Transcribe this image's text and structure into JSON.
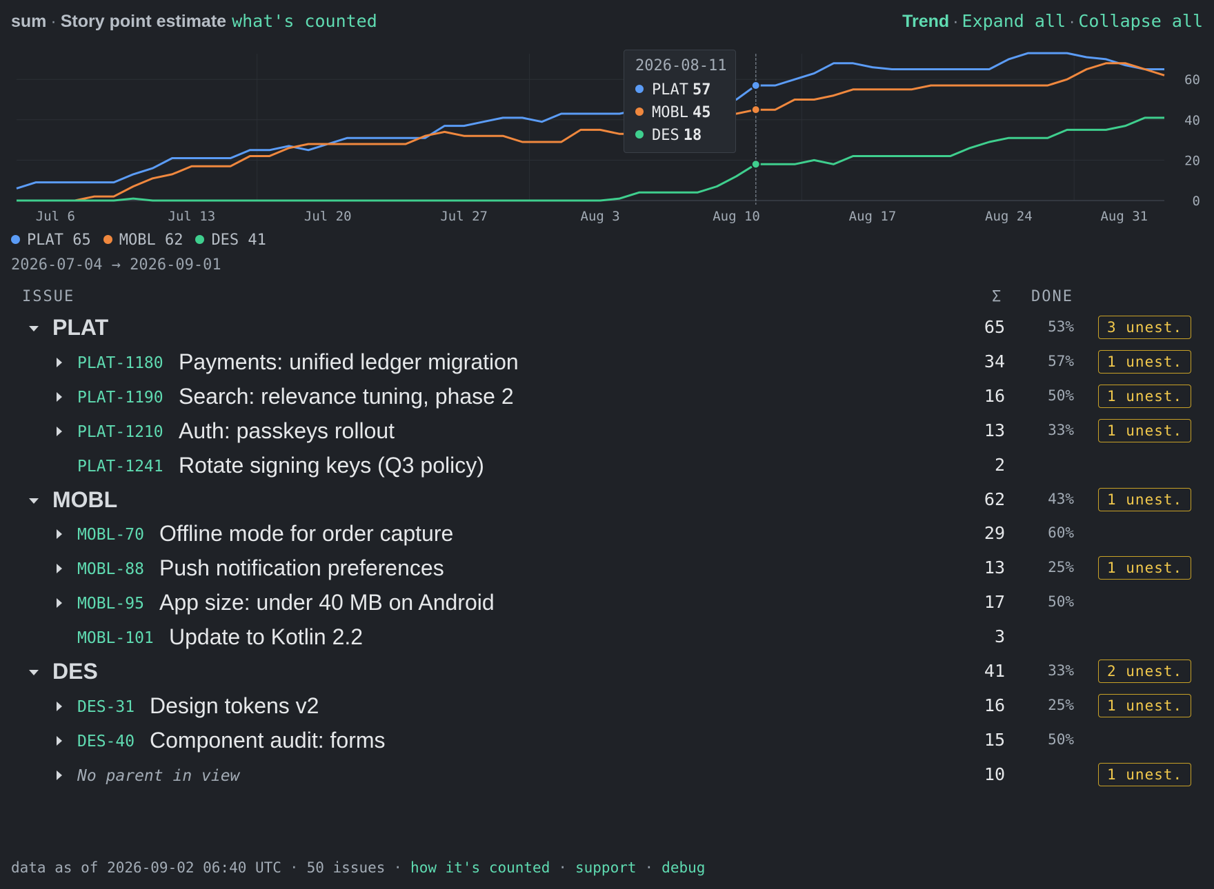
{
  "header": {
    "agg": "sum",
    "metric": "Story point estimate",
    "whats_counted": "what's counted",
    "trend": "Trend",
    "expand_all": "Expand all",
    "collapse_all": "Collapse all"
  },
  "chart_data": {
    "type": "line",
    "x_tick_labels": [
      "Jul 6",
      "Jul 13",
      "Jul 20",
      "Jul 27",
      "Aug 3",
      "Aug 10",
      "Aug 17",
      "Aug 24",
      "Aug 31"
    ],
    "x_range": [
      "2026-07-04",
      "2026-09-01"
    ],
    "y_ticks": [
      0,
      20,
      40,
      60
    ],
    "ylim": [
      0,
      72
    ],
    "y_axis_side": "right",
    "grid": true,
    "series": [
      {
        "name": "PLAT",
        "color": "#5b9cf6",
        "points": [
          [
            0,
            6
          ],
          [
            1,
            9
          ],
          [
            2,
            9
          ],
          [
            3,
            9
          ],
          [
            4,
            9
          ],
          [
            5,
            9
          ],
          [
            6,
            13
          ],
          [
            7,
            16
          ],
          [
            8,
            21
          ],
          [
            9,
            21
          ],
          [
            10,
            21
          ],
          [
            11,
            21
          ],
          [
            12,
            25
          ],
          [
            13,
            25
          ],
          [
            14,
            27
          ],
          [
            15,
            25
          ],
          [
            16,
            28
          ],
          [
            17,
            31
          ],
          [
            18,
            31
          ],
          [
            19,
            31
          ],
          [
            20,
            31
          ],
          [
            21,
            31
          ],
          [
            22,
            37
          ],
          [
            23,
            37
          ],
          [
            24,
            39
          ],
          [
            25,
            41
          ],
          [
            26,
            41
          ],
          [
            27,
            39
          ],
          [
            28,
            43
          ],
          [
            29,
            43
          ],
          [
            30,
            43
          ],
          [
            31,
            43
          ],
          [
            32,
            45
          ],
          [
            33,
            45
          ],
          [
            34,
            46
          ],
          [
            35,
            47
          ],
          [
            36,
            49
          ],
          [
            37,
            50
          ],
          [
            38,
            57
          ],
          [
            39,
            57
          ],
          [
            40,
            60
          ],
          [
            41,
            63
          ],
          [
            42,
            68
          ],
          [
            43,
            68
          ],
          [
            44,
            66
          ],
          [
            45,
            65
          ],
          [
            46,
            65
          ],
          [
            47,
            65
          ],
          [
            48,
            65
          ],
          [
            49,
            65
          ],
          [
            50,
            65
          ],
          [
            51,
            70
          ],
          [
            52,
            73
          ],
          [
            53,
            73
          ],
          [
            54,
            73
          ],
          [
            55,
            71
          ],
          [
            56,
            70
          ],
          [
            57,
            67
          ],
          [
            58,
            65
          ],
          [
            59,
            65
          ]
        ]
      },
      {
        "name": "MOBL",
        "color": "#f0883e",
        "points": [
          [
            0,
            0
          ],
          [
            1,
            0
          ],
          [
            2,
            0
          ],
          [
            3,
            0
          ],
          [
            4,
            2
          ],
          [
            5,
            2
          ],
          [
            6,
            7
          ],
          [
            7,
            11
          ],
          [
            8,
            13
          ],
          [
            9,
            17
          ],
          [
            10,
            17
          ],
          [
            11,
            17
          ],
          [
            12,
            22
          ],
          [
            13,
            22
          ],
          [
            14,
            26
          ],
          [
            15,
            28
          ],
          [
            16,
            28
          ],
          [
            17,
            28
          ],
          [
            18,
            28
          ],
          [
            19,
            28
          ],
          [
            20,
            28
          ],
          [
            21,
            32
          ],
          [
            22,
            34
          ],
          [
            23,
            32
          ],
          [
            24,
            32
          ],
          [
            25,
            32
          ],
          [
            26,
            29
          ],
          [
            27,
            29
          ],
          [
            28,
            29
          ],
          [
            29,
            35
          ],
          [
            30,
            35
          ],
          [
            31,
            33
          ],
          [
            32,
            33
          ],
          [
            33,
            40
          ],
          [
            34,
            42
          ],
          [
            35,
            42
          ],
          [
            36,
            43
          ],
          [
            37,
            43
          ],
          [
            38,
            45
          ],
          [
            39,
            45
          ],
          [
            40,
            50
          ],
          [
            41,
            50
          ],
          [
            42,
            52
          ],
          [
            43,
            55
          ],
          [
            44,
            55
          ],
          [
            45,
            55
          ],
          [
            46,
            55
          ],
          [
            47,
            57
          ],
          [
            48,
            57
          ],
          [
            49,
            57
          ],
          [
            50,
            57
          ],
          [
            51,
            57
          ],
          [
            52,
            57
          ],
          [
            53,
            57
          ],
          [
            54,
            60
          ],
          [
            55,
            65
          ],
          [
            56,
            68
          ],
          [
            57,
            68
          ],
          [
            58,
            65
          ],
          [
            59,
            62
          ]
        ]
      },
      {
        "name": "DES",
        "color": "#3fcf8e",
        "points": [
          [
            0,
            0
          ],
          [
            1,
            0
          ],
          [
            2,
            0
          ],
          [
            3,
            0
          ],
          [
            4,
            0
          ],
          [
            5,
            0
          ],
          [
            6,
            1
          ],
          [
            7,
            0
          ],
          [
            8,
            0
          ],
          [
            9,
            0
          ],
          [
            10,
            0
          ],
          [
            11,
            0
          ],
          [
            12,
            0
          ],
          [
            13,
            0
          ],
          [
            14,
            0
          ],
          [
            15,
            0
          ],
          [
            16,
            0
          ],
          [
            17,
            0
          ],
          [
            18,
            0
          ],
          [
            19,
            0
          ],
          [
            20,
            0
          ],
          [
            21,
            0
          ],
          [
            22,
            0
          ],
          [
            23,
            0
          ],
          [
            24,
            0
          ],
          [
            25,
            0
          ],
          [
            26,
            0
          ],
          [
            27,
            0
          ],
          [
            28,
            0
          ],
          [
            29,
            0
          ],
          [
            30,
            0
          ],
          [
            31,
            1
          ],
          [
            32,
            4
          ],
          [
            33,
            4
          ],
          [
            34,
            4
          ],
          [
            35,
            4
          ],
          [
            36,
            7
          ],
          [
            37,
            12
          ],
          [
            38,
            18
          ],
          [
            39,
            18
          ],
          [
            40,
            18
          ],
          [
            41,
            20
          ],
          [
            42,
            18
          ],
          [
            43,
            22
          ],
          [
            44,
            22
          ],
          [
            45,
            22
          ],
          [
            46,
            22
          ],
          [
            47,
            22
          ],
          [
            48,
            22
          ],
          [
            49,
            26
          ],
          [
            50,
            29
          ],
          [
            51,
            31
          ],
          [
            52,
            31
          ],
          [
            53,
            31
          ],
          [
            54,
            35
          ],
          [
            55,
            35
          ],
          [
            56,
            35
          ],
          [
            57,
            37
          ],
          [
            58,
            41
          ],
          [
            59,
            41
          ]
        ]
      }
    ],
    "cursor_date": "2026-08-11"
  },
  "tooltip": {
    "date": "2026-08-11",
    "rows": [
      {
        "name": "PLAT",
        "value": "57",
        "color": "#5b9cf6"
      },
      {
        "name": "MOBL",
        "value": "45",
        "color": "#f0883e"
      },
      {
        "name": "DES",
        "value": "18",
        "color": "#3fcf8e"
      }
    ]
  },
  "legend": [
    {
      "label": "PLAT 65",
      "color": "#5b9cf6"
    },
    {
      "label": "MOBL 62",
      "color": "#f0883e"
    },
    {
      "label": "DES 41",
      "color": "#3fcf8e"
    }
  ],
  "date_range": "2026-07-04 → 2026-09-01",
  "table": {
    "col_issue": "ISSUE",
    "col_sum": "Σ",
    "col_done": "DONE",
    "rows": [
      {
        "kind": "group",
        "label": "PLAT",
        "sum": "65",
        "done": "53%",
        "badge": "3 unest."
      },
      {
        "kind": "issue",
        "key": "PLAT-1180",
        "title": "Payments: unified ledger migration",
        "sum": "34",
        "done": "57%",
        "badge": "1 unest.",
        "expandable": true
      },
      {
        "kind": "issue",
        "key": "PLAT-1190",
        "title": "Search: relevance tuning, phase 2",
        "sum": "16",
        "done": "50%",
        "badge": "1 unest.",
        "expandable": true
      },
      {
        "kind": "issue",
        "key": "PLAT-1210",
        "title": "Auth: passkeys rollout",
        "sum": "13",
        "done": "33%",
        "badge": "1 unest.",
        "expandable": true
      },
      {
        "kind": "issue",
        "key": "PLAT-1241",
        "title": "Rotate signing keys (Q3 policy)",
        "sum": "2",
        "done": "",
        "badge": "",
        "expandable": false
      },
      {
        "kind": "group",
        "label": "MOBL",
        "sum": "62",
        "done": "43%",
        "badge": "1 unest."
      },
      {
        "kind": "issue",
        "key": "MOBL-70",
        "title": "Offline mode for order capture",
        "sum": "29",
        "done": "60%",
        "badge": "",
        "expandable": true
      },
      {
        "kind": "issue",
        "key": "MOBL-88",
        "title": "Push notification preferences",
        "sum": "13",
        "done": "25%",
        "badge": "1 unest.",
        "expandable": true
      },
      {
        "kind": "issue",
        "key": "MOBL-95",
        "title": "App size: under 40 MB on Android",
        "sum": "17",
        "done": "50%",
        "badge": "",
        "expandable": true
      },
      {
        "kind": "issue",
        "key": "MOBL-101",
        "title": "Update to Kotlin 2.2",
        "sum": "3",
        "done": "",
        "badge": "",
        "expandable": false
      },
      {
        "kind": "group",
        "label": "DES",
        "sum": "41",
        "done": "33%",
        "badge": "2 unest."
      },
      {
        "kind": "issue",
        "key": "DES-31",
        "title": "Design tokens v2",
        "sum": "16",
        "done": "25%",
        "badge": "1 unest.",
        "expandable": true
      },
      {
        "kind": "issue",
        "key": "DES-40",
        "title": "Component audit: forms",
        "sum": "15",
        "done": "50%",
        "badge": "",
        "expandable": true
      },
      {
        "kind": "noparent",
        "label": "No parent in view",
        "sum": "10",
        "done": "",
        "badge": "1 unest.",
        "expandable": true
      }
    ]
  },
  "footer": {
    "data_as_of": "data as of 2026-09-02 06:40 UTC",
    "issues": "50 issues",
    "how_counted": "how it's counted",
    "support": "support",
    "debug": "debug"
  }
}
